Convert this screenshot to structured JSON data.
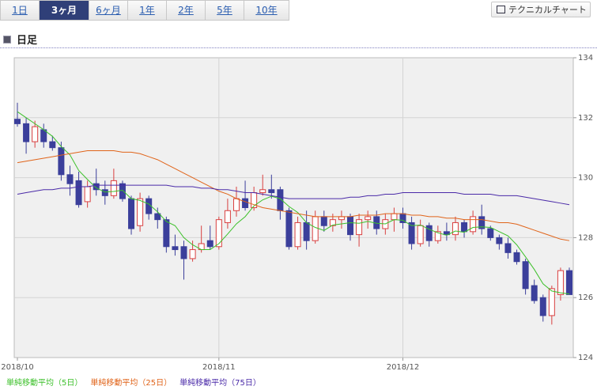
{
  "tabs": [
    "1日",
    "3ヶ月",
    "6ヶ月",
    "1年",
    "2年",
    "5年",
    "10年"
  ],
  "button": "テクニカルチャート",
  "heading": "日足",
  "chart_data": {
    "type": "candlestick",
    "categories": [
      "2018/10",
      null,
      null,
      null,
      null,
      null,
      null,
      null,
      null,
      null,
      null,
      null,
      null,
      null,
      null,
      null,
      null,
      null,
      null,
      null,
      null,
      null,
      null,
      "2018/11",
      null,
      null,
      null,
      null,
      null,
      null,
      null,
      null,
      null,
      null,
      null,
      null,
      null,
      null,
      null,
      null,
      null,
      null,
      null,
      null,
      "2018/12",
      null,
      null,
      null,
      null,
      null,
      null,
      null,
      null,
      null,
      null,
      null,
      null,
      null,
      null,
      null,
      null,
      null,
      null,
      null
    ],
    "open": [
      131.95,
      131.8,
      131.2,
      131.6,
      131.2,
      131.0,
      130.1,
      129.9,
      129.2,
      129.8,
      129.6,
      129.4,
      129.8,
      129.3,
      128.4,
      129.3,
      128.8,
      128.6,
      127.7,
      127.7,
      127.3,
      127.6,
      127.9,
      127.7,
      128.5,
      128.9,
      129.3,
      129.0,
      129.5,
      129.6,
      129.6,
      128.9,
      127.7,
      128.5,
      127.9,
      128.7,
      128.4,
      128.6,
      128.7,
      128.1,
      128.6,
      128.7,
      128.3,
      128.6,
      128.8,
      128.5,
      127.8,
      128.4,
      127.9,
      128.2,
      128.1,
      128.5,
      128.2,
      128.7,
      128.3,
      128.0,
      127.8,
      127.5,
      127.2,
      126.4,
      126.0,
      125.4,
      126.1,
      126.9
    ],
    "high": [
      132.5,
      132.0,
      131.9,
      131.8,
      131.4,
      131.2,
      130.4,
      130.2,
      129.9,
      130.3,
      129.9,
      130.3,
      129.9,
      129.4,
      129.5,
      129.4,
      129.0,
      128.7,
      128.1,
      127.9,
      127.9,
      128.4,
      128.4,
      128.7,
      129.3,
      129.7,
      129.9,
      129.7,
      130.1,
      130.1,
      129.7,
      129.0,
      128.7,
      128.9,
      128.9,
      128.9,
      128.8,
      128.9,
      128.8,
      128.8,
      128.9,
      128.9,
      128.8,
      129.0,
      129.0,
      128.7,
      128.6,
      128.5,
      128.4,
      128.5,
      128.7,
      128.6,
      128.9,
      129.1,
      128.4,
      128.1,
      128.0,
      127.6,
      127.3,
      126.6,
      126.1,
      126.4,
      127.0,
      127.0
    ],
    "low": [
      131.7,
      130.8,
      131.0,
      131.0,
      130.9,
      129.9,
      129.4,
      129.0,
      129.0,
      129.4,
      129.1,
      129.3,
      129.2,
      128.1,
      128.2,
      128.6,
      128.3,
      127.5,
      127.4,
      126.6,
      127.2,
      127.5,
      127.6,
      127.6,
      128.3,
      128.7,
      128.9,
      128.9,
      129.4,
      129.3,
      128.6,
      127.6,
      127.6,
      127.6,
      127.8,
      128.2,
      128.2,
      128.3,
      127.9,
      127.7,
      128.3,
      128.1,
      128.1,
      128.2,
      128.3,
      127.6,
      127.7,
      127.7,
      127.8,
      127.9,
      127.9,
      128.0,
      128.1,
      128.1,
      127.9,
      127.6,
      127.3,
      127.1,
      126.1,
      125.8,
      125.2,
      125.1,
      125.9,
      126.1
    ],
    "close": [
      131.8,
      131.2,
      131.7,
      131.2,
      131.0,
      130.1,
      129.8,
      129.1,
      129.7,
      129.6,
      129.4,
      129.9,
      129.3,
      128.3,
      129.3,
      128.8,
      128.6,
      127.7,
      127.6,
      127.3,
      127.6,
      127.8,
      127.7,
      128.6,
      128.9,
      129.3,
      129.0,
      129.5,
      129.6,
      129.5,
      128.9,
      127.7,
      128.5,
      127.9,
      128.7,
      128.4,
      128.6,
      128.7,
      128.1,
      128.6,
      128.7,
      128.3,
      128.6,
      128.8,
      128.5,
      127.8,
      128.4,
      127.9,
      128.2,
      128.1,
      128.5,
      128.2,
      128.7,
      128.3,
      128.0,
      127.8,
      127.5,
      127.2,
      126.3,
      125.9,
      125.4,
      126.3,
      126.9,
      126.1
    ],
    "up_color": "#d94040",
    "down_color": "#3b3f9b",
    "series": [
      {
        "name": "単純移動平均（5日）",
        "color": "#3cc02a",
        "values": [
          132.2,
          132.0,
          131.8,
          131.6,
          131.38,
          131.04,
          130.76,
          130.24,
          129.94,
          129.66,
          129.52,
          129.54,
          129.58,
          129.3,
          129.24,
          129.12,
          128.86,
          128.54,
          128.4,
          128.0,
          127.76,
          127.6,
          127.6,
          127.8,
          128.12,
          128.46,
          128.7,
          129.06,
          129.26,
          129.38,
          129.3,
          129.04,
          128.84,
          128.5,
          128.34,
          128.24,
          128.42,
          128.46,
          128.5,
          128.48,
          128.54,
          128.48,
          128.46,
          128.6,
          128.58,
          128.4,
          128.42,
          128.28,
          128.16,
          128.08,
          128.22,
          128.18,
          128.34,
          128.36,
          128.34,
          128.2,
          128.06,
          127.76,
          127.36,
          126.94,
          126.46,
          126.22,
          126.16,
          126.12
        ]
      },
      {
        "name": "単純移動平均（25日）",
        "color": "#e0641a",
        "values": [
          130.5,
          130.55,
          130.6,
          130.65,
          130.7,
          130.75,
          130.8,
          130.85,
          130.9,
          130.9,
          130.9,
          130.9,
          130.85,
          130.85,
          130.8,
          130.7,
          130.6,
          130.45,
          130.3,
          130.15,
          130.0,
          129.85,
          129.7,
          129.55,
          129.45,
          129.3,
          129.2,
          129.1,
          129.0,
          128.95,
          128.9,
          128.85,
          128.8,
          128.75,
          128.7,
          128.7,
          128.7,
          128.7,
          128.7,
          128.75,
          128.75,
          128.75,
          128.8,
          128.8,
          128.8,
          128.75,
          128.75,
          128.7,
          128.7,
          128.65,
          128.65,
          128.6,
          128.6,
          128.6,
          128.55,
          128.5,
          128.5,
          128.45,
          128.35,
          128.25,
          128.15,
          128.05,
          127.95,
          127.9
        ]
      },
      {
        "name": "単純移動平均（75日）",
        "color": "#4a2aa8",
        "values": [
          129.45,
          129.5,
          129.55,
          129.6,
          129.6,
          129.65,
          129.65,
          129.7,
          129.7,
          129.75,
          129.75,
          129.75,
          129.75,
          129.75,
          129.75,
          129.75,
          129.75,
          129.75,
          129.7,
          129.7,
          129.7,
          129.65,
          129.65,
          129.6,
          129.6,
          129.55,
          129.5,
          129.5,
          129.45,
          129.4,
          129.35,
          129.3,
          129.3,
          129.3,
          129.3,
          129.3,
          129.3,
          129.3,
          129.35,
          129.35,
          129.4,
          129.4,
          129.45,
          129.45,
          129.5,
          129.5,
          129.5,
          129.5,
          129.5,
          129.5,
          129.5,
          129.45,
          129.45,
          129.45,
          129.45,
          129.4,
          129.4,
          129.4,
          129.35,
          129.3,
          129.25,
          129.2,
          129.15,
          129.1
        ]
      }
    ],
    "ylim": [
      124,
      134
    ],
    "yticks": [
      124,
      126,
      128,
      130,
      132,
      134
    ],
    "grid": true
  }
}
